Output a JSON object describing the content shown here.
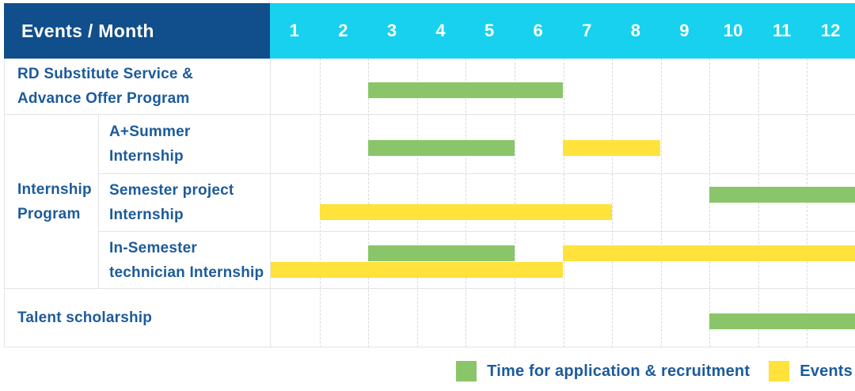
{
  "colors": {
    "header_bg": "#114E8C",
    "months_bg": "#17D1EE",
    "header_text": "#FFFFFF",
    "label_text": "#1C5B9B",
    "green": "#8BC56A",
    "yellow": "#FFE23C",
    "border": "#E4E4E4",
    "gridline": "#D9D9D9",
    "page_bg": "#FFFFFF"
  },
  "header": {
    "title": "Events / Month",
    "months": [
      "1",
      "2",
      "3",
      "4",
      "5",
      "6",
      "7",
      "8",
      "9",
      "10",
      "11",
      "12"
    ]
  },
  "row_labels": {
    "rd": [
      "RD Substitute Service &",
      "Advance Offer Program"
    ],
    "internship_group": [
      "Internship",
      "Program"
    ],
    "a_summer": [
      "A+Summer",
      "Internship"
    ],
    "semester_project": [
      "Semester project",
      "Internship"
    ],
    "in_semester": [
      "In-Semester",
      "technician Internship"
    ],
    "talent": [
      "Talent scholarship"
    ]
  },
  "legend": {
    "application": "Time for application & recruitment",
    "events": "Events"
  },
  "chart_data": {
    "type": "gantt",
    "title": "Events / Month",
    "x_axis": {
      "unit": "month",
      "ticks": [
        1,
        2,
        3,
        4,
        5,
        6,
        7,
        8,
        9,
        10,
        11,
        12
      ],
      "range": [
        1,
        12
      ]
    },
    "legend_entries": [
      {
        "key": "application",
        "label": "Time for application & recruitment",
        "color": "#8BC56A"
      },
      {
        "key": "events",
        "label": "Events",
        "color": "#FFE23C"
      }
    ],
    "rows": [
      {
        "group": null,
        "label": "RD Substitute Service & Advance Offer Program",
        "lines": [
          [
            {
              "series": "application",
              "start_month": 3,
              "end_month": 6
            }
          ]
        ]
      },
      {
        "group": "Internship Program",
        "label": "A+Summer Internship",
        "lines": [
          [
            {
              "series": "application",
              "start_month": 3,
              "end_month": 5
            },
            {
              "series": "events",
              "start_month": 7,
              "end_month": 8
            }
          ]
        ]
      },
      {
        "group": "Internship Program",
        "label": "Semester project Internship",
        "lines": [
          [
            {
              "series": "application",
              "start_month": 10,
              "end_month": 12
            }
          ],
          [
            {
              "series": "events",
              "start_month": 2,
              "end_month": 7
            }
          ]
        ]
      },
      {
        "group": "Internship Program",
        "label": "In-Semester technician Internship",
        "lines": [
          [
            {
              "series": "application",
              "start_month": 3,
              "end_month": 5
            },
            {
              "series": "events",
              "start_month": 7,
              "end_month": 12
            }
          ],
          [
            {
              "series": "events",
              "start_month": 1,
              "end_month": 6
            }
          ]
        ]
      },
      {
        "group": null,
        "label": "Talent scholarship",
        "lines": [
          [
            {
              "series": "application",
              "start_month": 10,
              "end_month": 12
            }
          ]
        ]
      }
    ]
  }
}
